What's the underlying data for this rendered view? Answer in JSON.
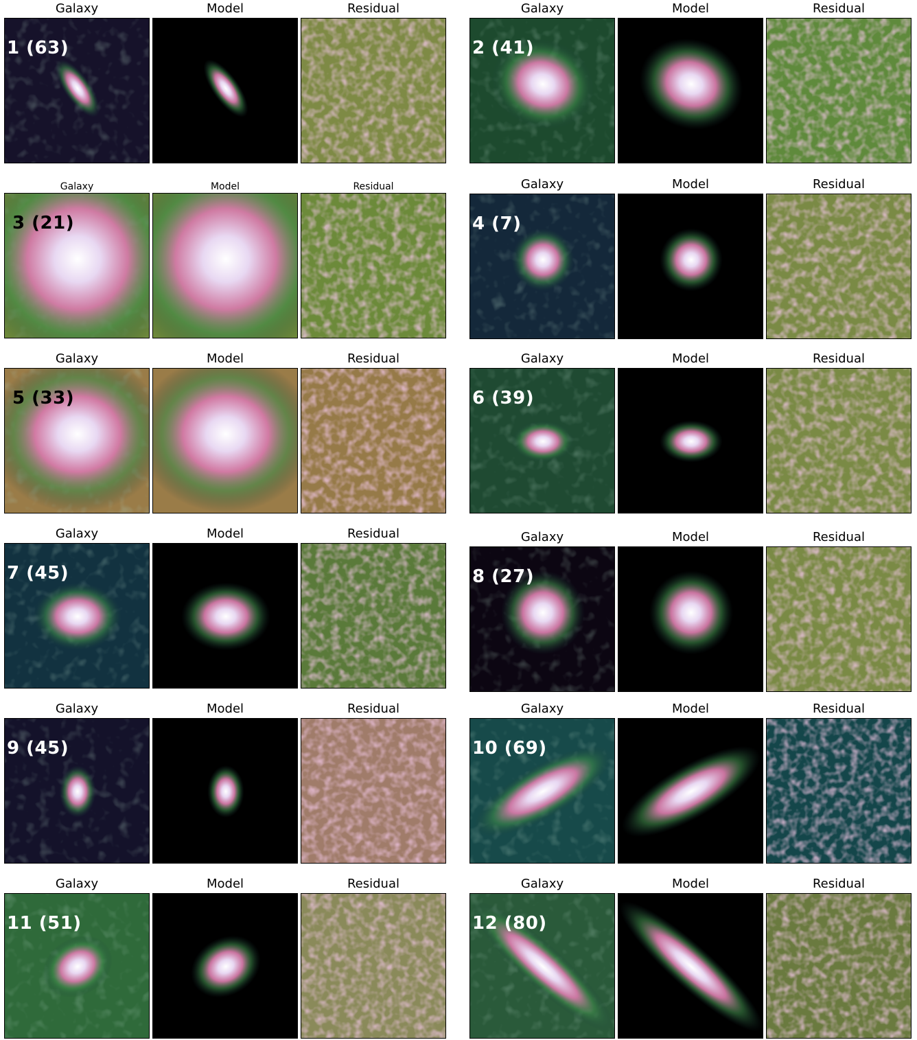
{
  "column_titles": {
    "galaxy": "Galaxy",
    "model": "Model",
    "residual": "Residual"
  },
  "galaxies": [
    {
      "label": "1 (63)",
      "label_color": "#ffffff",
      "bg": "#16122a",
      "res_bg": "#7e8a45",
      "ellipse": {
        "rx": 0.05,
        "ry": 0.13,
        "angle": -35
      },
      "dx": 0.0,
      "dy": -0.02
    },
    {
      "label": "2 (41)",
      "label_color": "#ffffff",
      "bg": "#1d4a2e",
      "res_bg": "#5f8a3c",
      "ellipse": {
        "rx": 0.2,
        "ry": 0.17,
        "angle": 20
      },
      "dx": 0.0,
      "dy": -0.05
    },
    {
      "label": "3 (21)",
      "label_color": "#000000",
      "bg": "#6f8a3a",
      "res_bg": "#6c8a3a",
      "ellipse": {
        "rx": 0.4,
        "ry": 0.4,
        "angle": 0
      },
      "dx": 0.0,
      "dy": -0.05
    },
    {
      "label": "4 (7)",
      "label_color": "#ffffff",
      "bg": "#14283a",
      "res_bg": "#7a8a45",
      "ellipse": {
        "rx": 0.12,
        "ry": 0.12,
        "angle": 0
      },
      "dx": 0.0,
      "dy": -0.05
    },
    {
      "label": "5 (33)",
      "label_color": "#000000",
      "bg": "#9a7c48",
      "res_bg": "#967a48",
      "ellipse": {
        "rx": 0.34,
        "ry": 0.3,
        "angle": 0
      },
      "dx": 0.0,
      "dy": -0.05
    },
    {
      "label": "6 (39)",
      "label_color": "#ffffff",
      "bg": "#1f4a32",
      "res_bg": "#7a8a45",
      "ellipse": {
        "rx": 0.12,
        "ry": 0.08,
        "angle": 0
      },
      "dx": 0.0,
      "dy": 0.0
    },
    {
      "label": "7 (45)",
      "label_color": "#ffffff",
      "bg": "#123240",
      "res_bg": "#5a7a3a",
      "ellipse": {
        "rx": 0.17,
        "ry": 0.13,
        "angle": 0
      },
      "dx": 0.0,
      "dy": 0.0
    },
    {
      "label": "8 (27)",
      "label_color": "#ffffff",
      "bg": "#0c0612",
      "res_bg": "#7a8a45",
      "ellipse": {
        "rx": 0.16,
        "ry": 0.16,
        "angle": 0
      },
      "dx": 0.0,
      "dy": -0.05
    },
    {
      "label": "9 (45)",
      "label_color": "#ffffff",
      "bg": "#14122a",
      "res_bg": "#a07c6a",
      "ellipse": {
        "rx": 0.07,
        "ry": 0.1,
        "angle": 0
      },
      "dx": 0.0,
      "dy": 0.0
    },
    {
      "label": "10 (69)",
      "label_color": "#ffffff",
      "bg": "#174a4a",
      "res_bg": "#14464a",
      "ellipse": {
        "rx": 0.3,
        "ry": 0.1,
        "angle": -30
      },
      "dx": 0.0,
      "dy": 0.0
    },
    {
      "label": "11 (51)",
      "label_color": "#ffffff",
      "bg": "#2f6a3a",
      "res_bg": "#8a8a5a",
      "ellipse": {
        "rx": 0.14,
        "ry": 0.11,
        "angle": -30
      },
      "dx": 0.0,
      "dy": 0.0
    },
    {
      "label": "12 (80)",
      "label_color": "#ffffff",
      "bg": "#2a5a3a",
      "res_bg": "#6a7a3f",
      "ellipse": {
        "rx": 0.36,
        "ry": 0.08,
        "angle": 42
      },
      "dx": 0.0,
      "dy": 0.0
    }
  ]
}
